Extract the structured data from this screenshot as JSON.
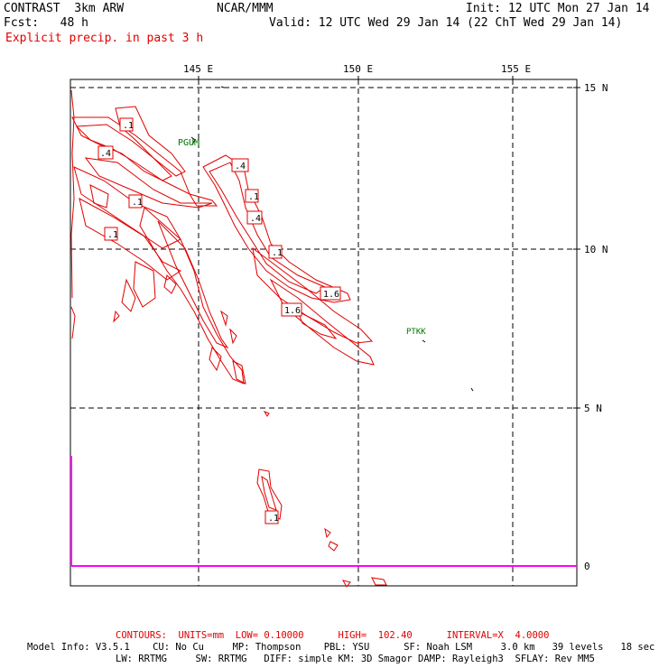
{
  "header": {
    "model": "CONTRAST  3km ARW",
    "org": "NCAR/MMM",
    "init": "Init: 12 UTC Mon 27 Jan 14",
    "fcst": "Fcst:   48 h",
    "valid": "Valid: 12 UTC Wed 29 Jan 14 (22 ChT Wed 29 Jan 14)",
    "field": "Explicit precip. in past 3 h"
  },
  "map": {
    "lon_labels": [
      "145 E",
      "150 E",
      "155 E"
    ],
    "lat_labels": [
      "15 N",
      "10 N",
      "5 N",
      "0"
    ],
    "stations": [
      "PGUM",
      "PTKK"
    ],
    "contour_labels": [
      ".1",
      ".4",
      ".1",
      ".1",
      ".4",
      ".1",
      ".4",
      ".1",
      "1.6",
      "1.6",
      ".1"
    ],
    "colors": {
      "contour": "#e00000",
      "station": "#007700",
      "magenta": "#ff00ff",
      "grid": "#000000"
    }
  },
  "footer": {
    "contours": "CONTOURS:  UNITS=mm  LOW= 0.10000      HIGH=  102.40      INTERVAL=X  4.0000",
    "model_info_1": "Model Info: V3.5.1    CU: No Cu     MP: Thompson    PBL: YSU      SF: Noah LSM     3.0 km   39 levels   18 sec",
    "model_info_2": "LW: RRTMG     SW: RRTMG   DIFF: simple KM: 3D Smagor DAMP: Rayleigh3  SFLAY: Rev MM5"
  }
}
